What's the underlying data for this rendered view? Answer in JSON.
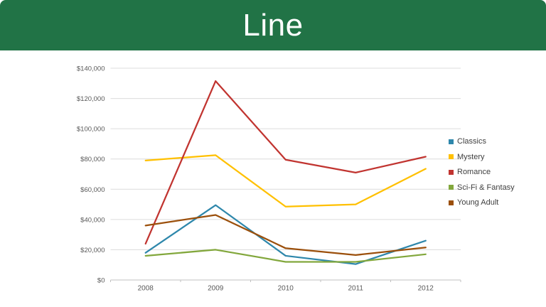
{
  "title": "Line",
  "colors": {
    "header_bg": "#217346",
    "header_text": "#FFFFFF",
    "axis_text": "#595959",
    "legend_text": "#404040",
    "gridline": "#DCDCDC",
    "axis_line": "#C0C0C0",
    "background": "#FFFFFF"
  },
  "chart_data": {
    "type": "line",
    "title": "Line",
    "categories": [
      "2008",
      "2009",
      "2010",
      "2011",
      "2012"
    ],
    "series": [
      {
        "name": "Classics",
        "color": "#2E87AB",
        "values": [
          18000,
          49500,
          16000,
          10500,
          26000
        ]
      },
      {
        "name": "Mystery",
        "color": "#FFC000",
        "values": [
          79000,
          82500,
          48500,
          50000,
          73500
        ]
      },
      {
        "name": "Romance",
        "color": "#C13430",
        "values": [
          24000,
          131500,
          79500,
          71000,
          81500
        ]
      },
      {
        "name": "Sci-Fi & Fantasy",
        "color": "#82A73C",
        "values": [
          16000,
          20000,
          12000,
          12000,
          17000
        ]
      },
      {
        "name": "Young Adult",
        "color": "#9B4F0B",
        "values": [
          36000,
          43000,
          21000,
          16500,
          21500
        ]
      }
    ],
    "y_axis": {
      "min": 0,
      "max": 140000,
      "tick_step": 20000,
      "tick_values": [
        0,
        20000,
        40000,
        60000,
        80000,
        100000,
        120000,
        140000
      ],
      "tick_labels": [
        "$0",
        "$20,000",
        "$40,000",
        "$60,000",
        "$80,000",
        "$100,000",
        "$120,000",
        "$140,000"
      ]
    },
    "xlabel": "",
    "ylabel": "",
    "grid": true,
    "legend_position": "right"
  }
}
